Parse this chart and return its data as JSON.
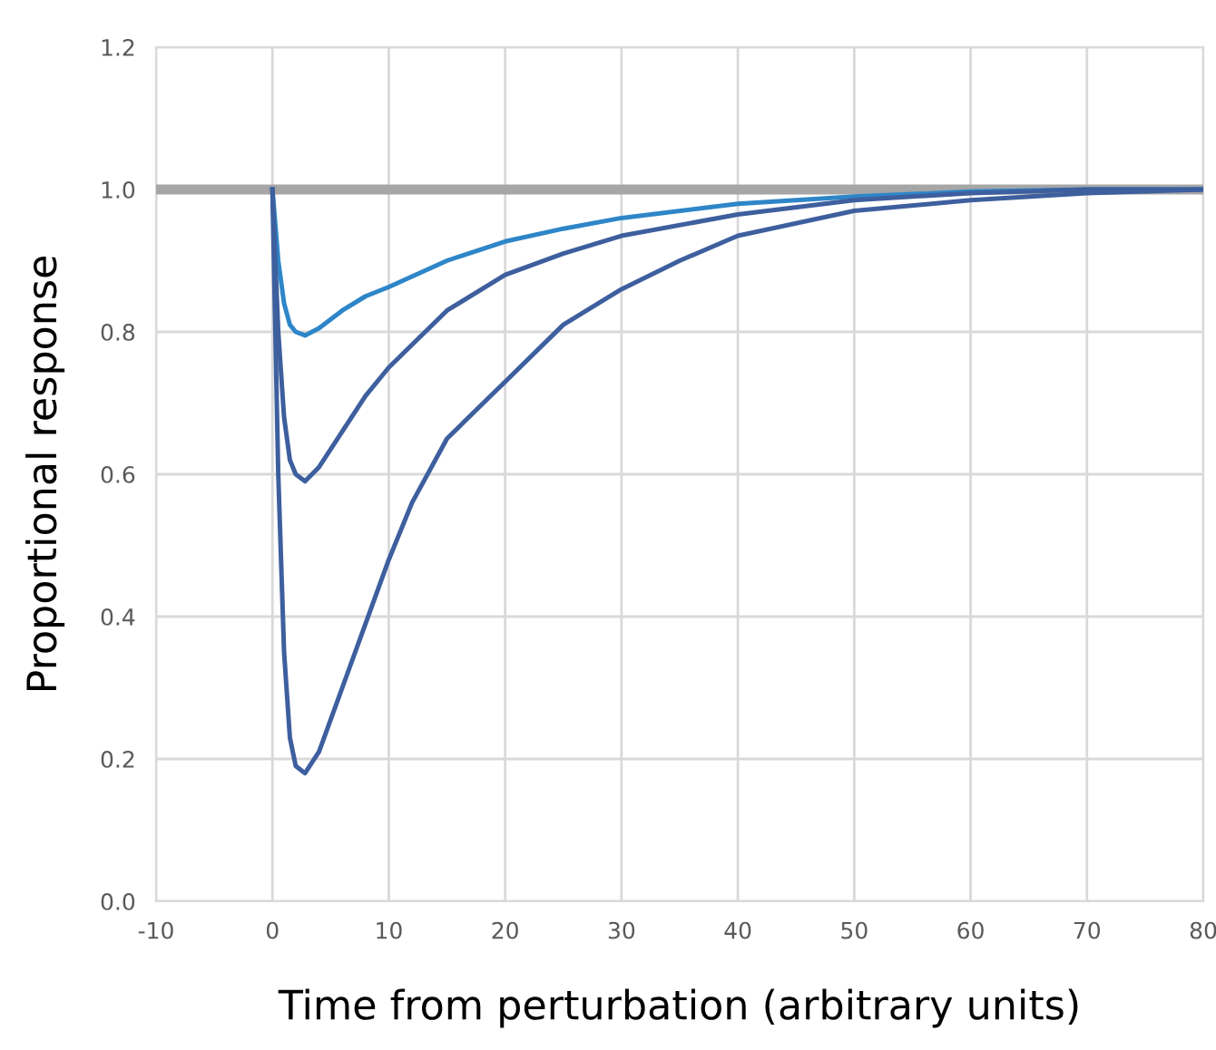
{
  "chart_data": {
    "type": "line",
    "xlabel": "Time from perturbation (arbitrary units)",
    "ylabel": "Proportional response",
    "xlim": [
      -10,
      80
    ],
    "xticks": [
      -10,
      0,
      10,
      20,
      30,
      40,
      50,
      60,
      70,
      80
    ],
    "ylim": [
      0,
      1.2
    ],
    "yticks": [
      {
        "value": 0,
        "label": "0.0"
      },
      {
        "value": 0.2,
        "label": "0.2"
      },
      {
        "value": 0.4,
        "label": "0.4"
      },
      {
        "value": 0.6,
        "label": "0.6"
      },
      {
        "value": 0.8,
        "label": "0.8"
      },
      {
        "value": 1,
        "label": "1.0"
      },
      {
        "value": 1.2,
        "label": "1.2"
      }
    ],
    "grid": true,
    "marker": "none",
    "line_style": "solid",
    "series": [
      {
        "color": "#a6a6a6",
        "x": [
          -10,
          80
        ],
        "values": [
          1.0,
          1.0
        ]
      },
      {
        "color": "#2e86c8",
        "x": [
          0,
          0.5,
          1,
          1.5,
          2,
          2.8,
          4,
          6,
          8,
          10,
          15,
          20,
          25,
          30,
          40,
          50,
          60,
          70,
          80
        ],
        "values": [
          1.0,
          0.9,
          0.84,
          0.81,
          0.8,
          0.795,
          0.805,
          0.83,
          0.85,
          0.863,
          0.9,
          0.927,
          0.945,
          0.96,
          0.98,
          0.99,
          0.997,
          1.0,
          1.0
        ]
      },
      {
        "color": "#3e5f9e",
        "x": [
          0,
          0.5,
          1,
          1.5,
          2,
          2.8,
          4,
          6,
          8,
          10,
          15,
          20,
          25,
          30,
          40,
          50,
          60,
          70,
          80
        ],
        "values": [
          1.0,
          0.8,
          0.68,
          0.62,
          0.6,
          0.59,
          0.61,
          0.66,
          0.71,
          0.75,
          0.83,
          0.88,
          0.91,
          0.935,
          0.965,
          0.985,
          0.995,
          1.0,
          1.0
        ]
      },
      {
        "color": "#3e5f9e",
        "x": [
          0,
          0.5,
          1,
          1.5,
          2,
          2.8,
          4,
          6,
          8,
          10,
          12,
          15,
          20,
          25,
          30,
          35,
          40,
          50,
          60,
          70,
          80
        ],
        "values": [
          1.0,
          0.6,
          0.35,
          0.23,
          0.19,
          0.18,
          0.21,
          0.3,
          0.39,
          0.48,
          0.56,
          0.65,
          0.73,
          0.81,
          0.86,
          0.9,
          0.935,
          0.97,
          0.985,
          0.995,
          1.0
        ]
      }
    ]
  }
}
